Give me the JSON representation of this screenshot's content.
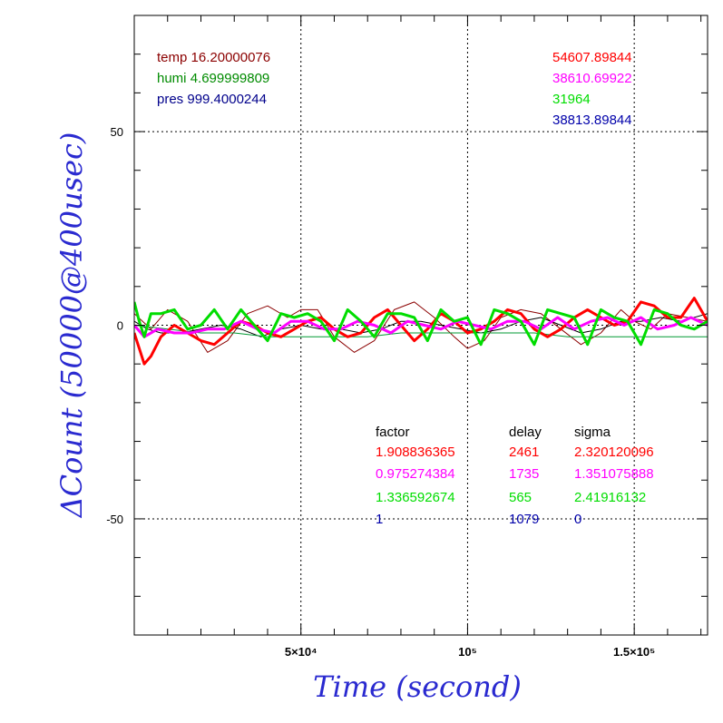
{
  "chart_data": {
    "type": "line",
    "xlabel": "Time (second)",
    "ylabel": "ΔCount (50000@400usec)",
    "xlim": [
      0,
      172000
    ],
    "ylim": [
      -80,
      80
    ],
    "x_ticks": [
      {
        "value": 50000,
        "label": "5×10⁴"
      },
      {
        "value": 100000,
        "label": "10⁵"
      },
      {
        "value": 150000,
        "label": "1.5×10⁵"
      }
    ],
    "y_ticks": [
      {
        "value": 50,
        "label": "50"
      },
      {
        "value": 0,
        "label": "0"
      },
      {
        "value": -50,
        "label": "-50"
      }
    ],
    "grid": true,
    "env": [
      {
        "key": "temp",
        "value": "16.20000076",
        "color": "#8b0000"
      },
      {
        "key": "humi",
        "value": "4.699999809",
        "color": "#008b00"
      },
      {
        "key": "pres",
        "value": "999.4000244",
        "color": "#00008b"
      }
    ],
    "counts": [
      {
        "value": "54607.89844",
        "color": "#ff0000"
      },
      {
        "value": "38610.69922",
        "color": "#ff00ff"
      },
      {
        "value": "31964",
        "color": "#00dd00"
      },
      {
        "value": "38813.89844",
        "color": "#0000aa"
      }
    ],
    "table": {
      "headers": [
        "factor",
        "delay",
        "sigma"
      ],
      "rows": [
        {
          "factor": "1.908836365",
          "delay": "2461",
          "sigma": "2.320120096",
          "color": "#ff0000"
        },
        {
          "factor": "0.975274384",
          "delay": "1735",
          "sigma": "1.351075888",
          "color": "#ff00ff"
        },
        {
          "factor": "1.336592674",
          "delay": "565",
          "sigma": "2.41916132",
          "color": "#00dd00"
        },
        {
          "factor": "1",
          "delay": "1079",
          "sigma": "0",
          "color": "#0000aa"
        }
      ]
    },
    "series": [
      {
        "color": "#8b0000",
        "width": 1,
        "x": [
          0,
          5000,
          10000,
          16000,
          22000,
          28000,
          34000,
          40000,
          46000,
          50000,
          55000,
          60000,
          66000,
          72000,
          78000,
          84000,
          90000,
          96000,
          100000,
          105000,
          110000,
          116000,
          122000,
          128000,
          134000,
          140000,
          146000,
          150000,
          155000,
          160000,
          166000,
          172000
        ],
        "y": [
          3,
          -1,
          4,
          1,
          -7,
          -4,
          3,
          5,
          2,
          4,
          4,
          -3,
          -7,
          -4,
          4,
          6,
          2,
          -3,
          -6,
          -4,
          2,
          4,
          3,
          -1,
          -5,
          -2,
          4,
          1,
          -1,
          3,
          2,
          1
        ]
      },
      {
        "color": "#000000",
        "width": 1,
        "x": [
          0,
          4000,
          8000,
          14000,
          20000,
          26000,
          32000,
          38000,
          44000,
          50000,
          56000,
          62000,
          68000,
          74000,
          80000,
          86000,
          92000,
          98000,
          104000,
          110000,
          116000,
          122000,
          128000,
          134000,
          140000,
          146000,
          152000,
          158000,
          164000,
          172000
        ],
        "y": [
          1,
          -1,
          -2,
          -2,
          -1,
          0,
          -1,
          -3,
          -1,
          0,
          -1,
          -1,
          -2,
          -1,
          1,
          1,
          0,
          -1,
          -2,
          -1,
          1,
          2,
          0,
          -2,
          -1,
          1,
          1,
          2,
          1,
          3
        ]
      },
      {
        "color": "#009933",
        "width": 1,
        "x": [
          0,
          10000,
          20000,
          30000,
          40000,
          50000,
          60000,
          70000,
          80000,
          90000,
          100000,
          110000,
          120000,
          130000,
          140000,
          150000,
          160000,
          172000
        ],
        "y": [
          0,
          -1,
          -2,
          -2,
          -3,
          -3,
          -3,
          -3,
          -2,
          -2,
          -2,
          -2,
          -2,
          -3,
          -3,
          -3,
          -3,
          -3
        ]
      },
      {
        "color": "#ff0000",
        "width": 3,
        "x": [
          0,
          1500,
          3000,
          5000,
          8000,
          12000,
          16000,
          20000,
          24000,
          28000,
          32000,
          36000,
          40000,
          44000,
          48000,
          52000,
          56000,
          60000,
          64000,
          68000,
          72000,
          76000,
          80000,
          84000,
          88000,
          92000,
          96000,
          100000,
          104000,
          108000,
          112000,
          116000,
          120000,
          124000,
          128000,
          132000,
          136000,
          140000,
          144000,
          148000,
          152000,
          156000,
          160000,
          164000,
          168000,
          172000
        ],
        "y": [
          -2,
          -6,
          -10,
          -8,
          -3,
          0,
          -2,
          -4,
          -5,
          -2,
          1,
          0,
          -2,
          -3,
          -1,
          1,
          2,
          -1,
          -3,
          -2,
          2,
          4,
          0,
          -4,
          -1,
          3,
          1,
          -2,
          -1,
          1,
          4,
          3,
          -1,
          -3,
          -1,
          2,
          4,
          2,
          0,
          1,
          6,
          5,
          2,
          2,
          7,
          1
        ]
      },
      {
        "color": "#ff00ff",
        "width": 3,
        "x": [
          0,
          3000,
          7000,
          12000,
          17000,
          22000,
          27000,
          32000,
          37000,
          42000,
          47000,
          52000,
          57000,
          62000,
          67000,
          72000,
          77000,
          82000,
          87000,
          92000,
          97000,
          102000,
          107000,
          112000,
          117000,
          122000,
          127000,
          132000,
          137000,
          142000,
          147000,
          152000,
          157000,
          162000,
          167000,
          172000
        ],
        "y": [
          0,
          -3,
          -1,
          -2,
          -2,
          -1,
          -1,
          1,
          -1,
          -2,
          1,
          1,
          -1,
          -1,
          1,
          0,
          -2,
          1,
          0,
          -1,
          1,
          0,
          -1,
          1,
          1,
          -1,
          2,
          -1,
          1,
          2,
          0,
          2,
          -1,
          0,
          2,
          0
        ]
      },
      {
        "color": "#00dd00",
        "width": 3,
        "x": [
          0,
          1500,
          3000,
          5000,
          8000,
          12000,
          16000,
          20000,
          24000,
          28000,
          32000,
          36000,
          40000,
          44000,
          48000,
          52000,
          56000,
          60000,
          64000,
          68000,
          72000,
          76000,
          80000,
          84000,
          88000,
          92000,
          96000,
          100000,
          104000,
          108000,
          112000,
          116000,
          120000,
          124000,
          128000,
          132000,
          136000,
          140000,
          144000,
          148000,
          152000,
          156000,
          160000,
          164000,
          168000,
          172000
        ],
        "y": [
          6,
          1,
          -3,
          3,
          3,
          4,
          -1,
          0,
          4,
          -1,
          4,
          0,
          -4,
          3,
          2,
          3,
          1,
          -4,
          4,
          1,
          -3,
          3,
          3,
          2,
          -4,
          4,
          1,
          2,
          -5,
          4,
          3,
          1,
          -5,
          4,
          3,
          2,
          -5,
          4,
          2,
          1,
          -5,
          4,
          3,
          0,
          -1,
          1
        ]
      }
    ]
  }
}
